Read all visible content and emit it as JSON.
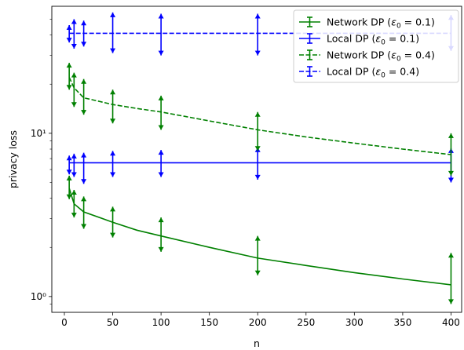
{
  "chart_data": {
    "type": "line",
    "xlabel": "n",
    "ylabel": "privacy loss",
    "x_scale": "linear",
    "y_scale": "log",
    "xlim": [
      -13,
      411
    ],
    "ylim": [
      0.8,
      60
    ],
    "x_ticks": [
      0,
      50,
      100,
      150,
      200,
      250,
      300,
      350,
      400
    ],
    "x_tick_labels": [
      "0",
      "50",
      "100",
      "150",
      "200",
      "250",
      "300",
      "350",
      "400"
    ],
    "y_ticks": [
      1,
      10
    ],
    "y_tick_labels": [
      "10⁰",
      "10¹"
    ],
    "grid": false,
    "legend_position": "top-right",
    "series": [
      {
        "label_prefix": "Network DP",
        "epsilon": "0.1",
        "color": "#008000",
        "linestyle": "solid",
        "x": [
          5,
          10,
          20,
          50,
          100,
          200,
          400
        ],
        "y": [
          4.6,
          3.7,
          3.3,
          2.85,
          2.35,
          1.72,
          1.18
        ],
        "err_low": [
          3.95,
          3.05,
          2.6,
          2.3,
          1.88,
          1.35,
          0.9
        ],
        "err_high": [
          5.5,
          4.5,
          4.1,
          3.55,
          3.05,
          2.35,
          1.85
        ],
        "curve_x": [
          5,
          10,
          20,
          50,
          75,
          100,
          150,
          200,
          250,
          300,
          350,
          400
        ],
        "curve_y": [
          4.6,
          3.7,
          3.3,
          2.85,
          2.55,
          2.35,
          2.0,
          1.72,
          1.55,
          1.4,
          1.28,
          1.18
        ]
      },
      {
        "label_prefix": "Local DP",
        "epsilon": "0.1",
        "color": "#0000ff",
        "linestyle": "solid",
        "x": [
          5,
          10,
          20,
          50,
          100,
          200,
          400
        ],
        "y": [
          6.6,
          6.6,
          6.6,
          6.6,
          6.6,
          6.6,
          6.6
        ],
        "err_low": [
          5.6,
          5.4,
          4.9,
          5.4,
          5.4,
          5.2,
          5.0
        ],
        "err_high": [
          7.3,
          7.5,
          7.6,
          7.8,
          7.9,
          8.2,
          8.1
        ],
        "curve_x": [
          5,
          400
        ],
        "curve_y": [
          6.6,
          6.6
        ]
      },
      {
        "label_prefix": "Network DP",
        "epsilon": "0.4",
        "color": "#008000",
        "linestyle": "dashed",
        "x": [
          5,
          10,
          20,
          50,
          100,
          200,
          400
        ],
        "y": [
          22.0,
          19.0,
          16.5,
          15.0,
          13.5,
          10.5,
          7.4
        ],
        "err_low": [
          18.5,
          14.5,
          13.0,
          11.5,
          10.5,
          7.8,
          5.5
        ],
        "err_high": [
          27.0,
          23.5,
          21.5,
          18.5,
          17.0,
          13.5,
          10.0
        ],
        "curve_x": [
          5,
          10,
          20,
          50,
          75,
          100,
          150,
          200,
          250,
          300,
          350,
          400
        ],
        "curve_y": [
          22.0,
          19.0,
          16.5,
          15.0,
          14.2,
          13.5,
          11.9,
          10.5,
          9.5,
          8.7,
          8.0,
          7.4
        ]
      },
      {
        "label_prefix": "Local DP",
        "epsilon": "0.4",
        "color": "#0000ff",
        "linestyle": "dashed",
        "x": [
          5,
          10,
          20,
          50,
          100,
          200,
          400
        ],
        "y": [
          41.0,
          41.0,
          41.0,
          41.0,
          41.0,
          41.0,
          41.0
        ],
        "err_low": [
          36.0,
          33.0,
          34.0,
          31.0,
          30.0,
          30.0,
          32.0
        ],
        "err_high": [
          46.0,
          50.0,
          49.0,
          55.0,
          54.0,
          54.0,
          53.0
        ],
        "curve_x": [
          5,
          400
        ],
        "curve_y": [
          41.0,
          41.0
        ]
      }
    ]
  }
}
